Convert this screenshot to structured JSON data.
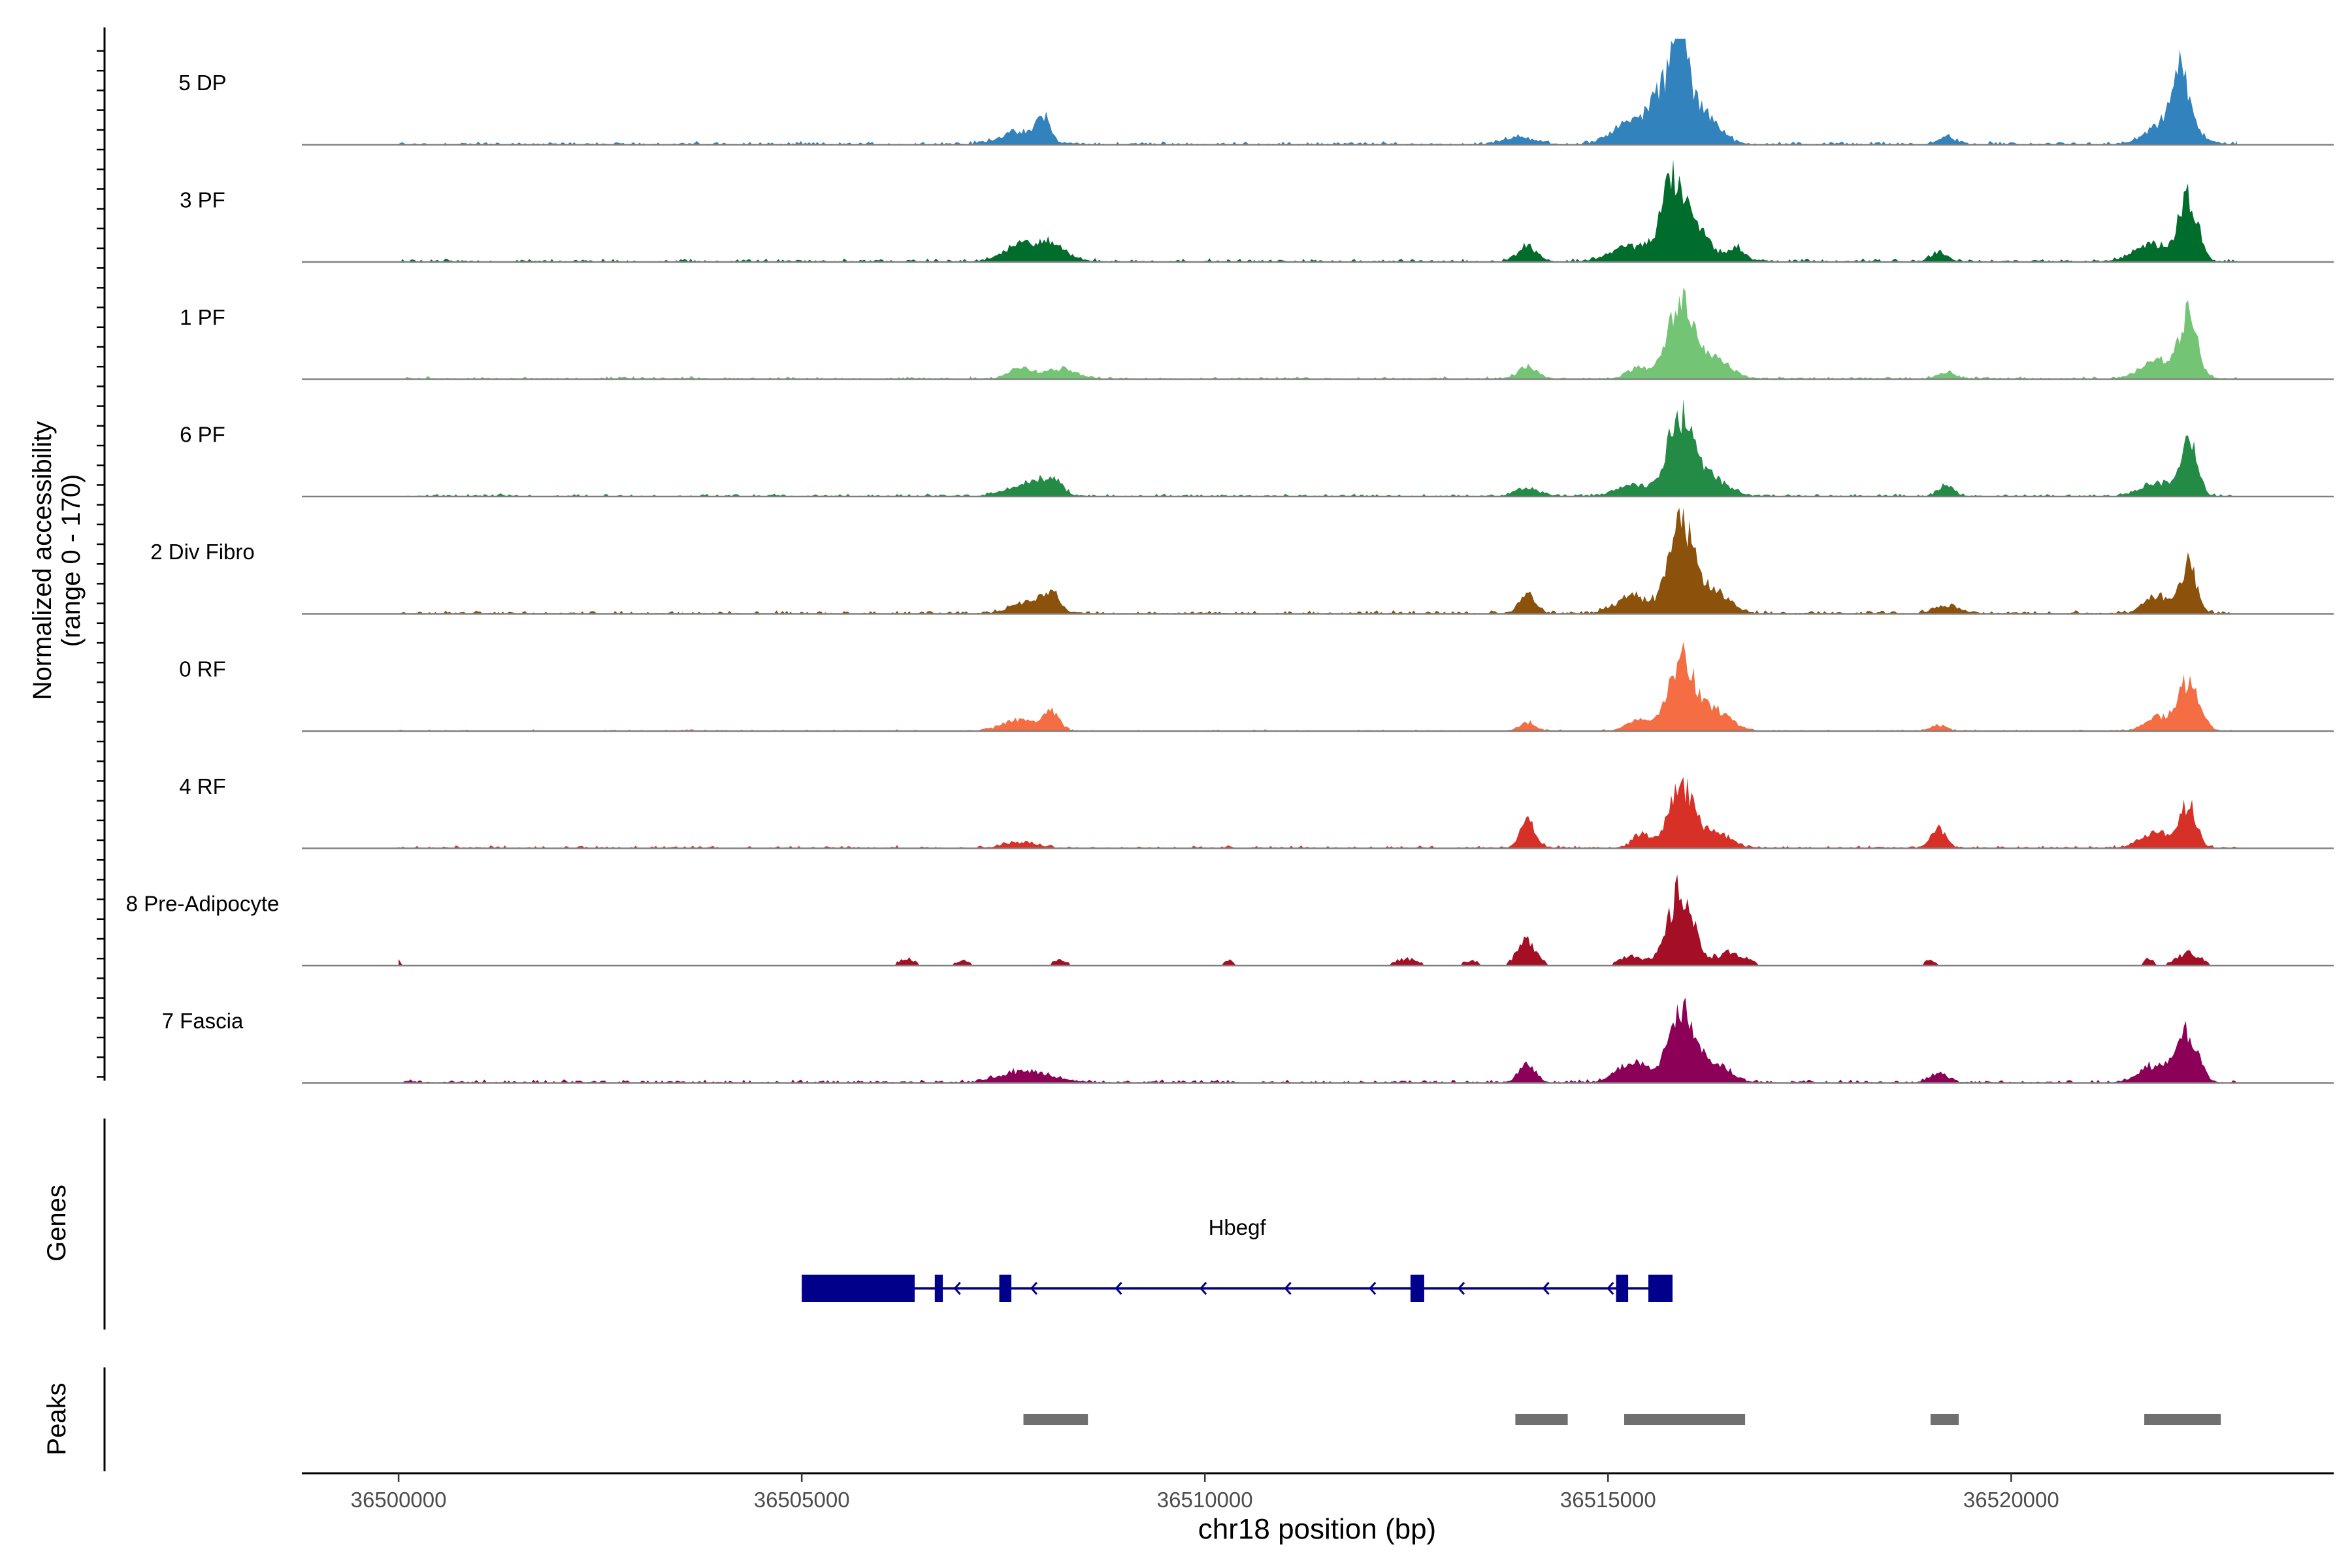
{
  "chart_data": {
    "type": "area",
    "title": "",
    "ylabel_line1": "Normalized accessibility",
    "ylabel_line2": "(range 0 - 170)",
    "yrange": [
      0,
      170
    ],
    "xlabel": "chr18 position (bp)",
    "xlim": [
      36498800,
      36524000
    ],
    "x_ticks": [
      36500000,
      36505000,
      36510000,
      36515000,
      36520000
    ],
    "x_tick_labels": [
      "36500000",
      "36505000",
      "36510000",
      "36515000",
      "36520000"
    ],
    "track_start": 36500000,
    "track_end": 36522800,
    "tracks": [
      {
        "name": "5 DP",
        "color": "#3182bd",
        "baseline": 6,
        "sparse": false,
        "peaks": [
          [
            36507700,
            0.12,
            250
          ],
          [
            36508000,
            0.24,
            80
          ],
          [
            36513900,
            0.08,
            180
          ],
          [
            36515200,
            0.18,
            200
          ],
          [
            36515700,
            0.55,
            200
          ],
          [
            36515900,
            0.78,
            100
          ],
          [
            36516200,
            0.32,
            180
          ],
          [
            36519200,
            0.08,
            100
          ],
          [
            36522100,
            0.55,
            100
          ],
          [
            36522000,
            0.25,
            250
          ]
        ]
      },
      {
        "name": "3 PF",
        "color": "#006d2c",
        "baseline": 6,
        "sparse": false,
        "peaks": [
          [
            36507700,
            0.16,
            200
          ],
          [
            36508100,
            0.16,
            200
          ],
          [
            36514000,
            0.16,
            120
          ],
          [
            36515300,
            0.16,
            250
          ],
          [
            36515800,
            0.74,
            140
          ],
          [
            36516100,
            0.3,
            180
          ],
          [
            36516600,
            0.14,
            100
          ],
          [
            36519100,
            0.1,
            100
          ],
          [
            36522200,
            0.62,
            110
          ],
          [
            36521800,
            0.18,
            250
          ]
        ]
      },
      {
        "name": "1 PF",
        "color": "#74c476",
        "baseline": 5,
        "sparse": false,
        "peaks": [
          [
            36507700,
            0.1,
            150
          ],
          [
            36508200,
            0.1,
            200
          ],
          [
            36514000,
            0.12,
            120
          ],
          [
            36515400,
            0.12,
            150
          ],
          [
            36515900,
            0.78,
            150
          ],
          [
            36516300,
            0.22,
            200
          ],
          [
            36519200,
            0.07,
            100
          ],
          [
            36522200,
            0.62,
            110
          ],
          [
            36521800,
            0.18,
            200
          ]
        ]
      },
      {
        "name": "6 PF",
        "color": "#238b45",
        "baseline": 5,
        "sparse": false,
        "peaks": [
          [
            36507800,
            0.12,
            250
          ],
          [
            36508100,
            0.14,
            120
          ],
          [
            36514000,
            0.08,
            150
          ],
          [
            36515300,
            0.12,
            200
          ],
          [
            36515900,
            0.82,
            160
          ],
          [
            36516300,
            0.18,
            200
          ],
          [
            36519200,
            0.1,
            100
          ],
          [
            36521800,
            0.14,
            200
          ],
          [
            36522200,
            0.58,
            100
          ]
        ]
      },
      {
        "name": "2 Div Fibro",
        "color": "#8c510a",
        "baseline": 6,
        "sparse": false,
        "peaks": [
          [
            36507800,
            0.12,
            200
          ],
          [
            36508100,
            0.18,
            100
          ],
          [
            36514000,
            0.2,
            100
          ],
          [
            36515300,
            0.18,
            200
          ],
          [
            36515900,
            0.92,
            150
          ],
          [
            36516300,
            0.22,
            200
          ],
          [
            36519200,
            0.08,
            150
          ],
          [
            36521800,
            0.18,
            150
          ],
          [
            36522200,
            0.5,
            100
          ]
        ]
      },
      {
        "name": "0 RF",
        "color": "#f46d43",
        "baseline": 3,
        "sparse": false,
        "peaks": [
          [
            36507700,
            0.12,
            200
          ],
          [
            36508100,
            0.18,
            100
          ],
          [
            36514000,
            0.08,
            100
          ],
          [
            36515400,
            0.12,
            150
          ],
          [
            36515900,
            0.72,
            150
          ],
          [
            36516300,
            0.22,
            200
          ],
          [
            36519100,
            0.06,
            100
          ],
          [
            36521800,
            0.14,
            150
          ],
          [
            36522200,
            0.5,
            130
          ]
        ]
      },
      {
        "name": "4 RF",
        "color": "#d73027",
        "baseline": 5,
        "sparse": false,
        "peaks": [
          [
            36507700,
            0.06,
            200
          ],
          [
            36514000,
            0.28,
            90
          ],
          [
            36515400,
            0.15,
            100
          ],
          [
            36515900,
            0.62,
            150
          ],
          [
            36516300,
            0.16,
            200
          ],
          [
            36519100,
            0.2,
            90
          ],
          [
            36521800,
            0.16,
            200
          ],
          [
            36522200,
            0.42,
            100
          ]
        ]
      },
      {
        "name": "8 Pre-Adipocyte",
        "color": "#a50f25",
        "baseline": 0,
        "sparse": true,
        "peaks": [
          [
            36500000,
            0.06,
            40
          ],
          [
            36506300,
            0.08,
            100
          ],
          [
            36507000,
            0.06,
            100
          ],
          [
            36508200,
            0.06,
            100
          ],
          [
            36510300,
            0.06,
            60
          ],
          [
            36512500,
            0.08,
            150
          ],
          [
            36513300,
            0.06,
            100
          ],
          [
            36514000,
            0.28,
            120
          ],
          [
            36515300,
            0.12,
            150
          ],
          [
            36515900,
            0.82,
            150
          ],
          [
            36516500,
            0.14,
            200
          ],
          [
            36519000,
            0.06,
            80
          ],
          [
            36522200,
            0.14,
            150
          ],
          [
            36521700,
            0.08,
            60
          ]
        ]
      },
      {
        "name": "7 Fascia",
        "color": "#8c0057",
        "baseline": 6,
        "sparse": false,
        "peaks": [
          [
            36507800,
            0.12,
            300
          ],
          [
            36514000,
            0.18,
            100
          ],
          [
            36515300,
            0.2,
            200
          ],
          [
            36515900,
            0.7,
            150
          ],
          [
            36516300,
            0.2,
            200
          ],
          [
            36519100,
            0.1,
            100
          ],
          [
            36521800,
            0.18,
            200
          ],
          [
            36522200,
            0.5,
            120
          ]
        ]
      }
    ],
    "genes_label": "Genes",
    "gene": {
      "name": "Hbegf",
      "start": 36505000,
      "end": 36515800,
      "strand": "-",
      "exons": [
        [
          36505000,
          36506400
        ],
        [
          36506650,
          36506750
        ],
        [
          36507450,
          36507600
        ],
        [
          36512550,
          36512720
        ],
        [
          36515100,
          36515250
        ],
        [
          36515500,
          36515800
        ]
      ],
      "arrows": [
        36506900,
        36507850,
        36508900,
        36509950,
        36511000,
        36512050,
        36513150,
        36514200,
        36515000
      ]
    },
    "peaks_label": "Peaks",
    "peak_regions": [
      [
        36507750,
        36508550
      ],
      [
        36513850,
        36514500
      ],
      [
        36515200,
        36516700
      ],
      [
        36519000,
        36519350
      ],
      [
        36521650,
        36522600
      ]
    ],
    "colors": {
      "gene": "#00008b",
      "peak": "#707070",
      "baseline": "#808080"
    }
  }
}
